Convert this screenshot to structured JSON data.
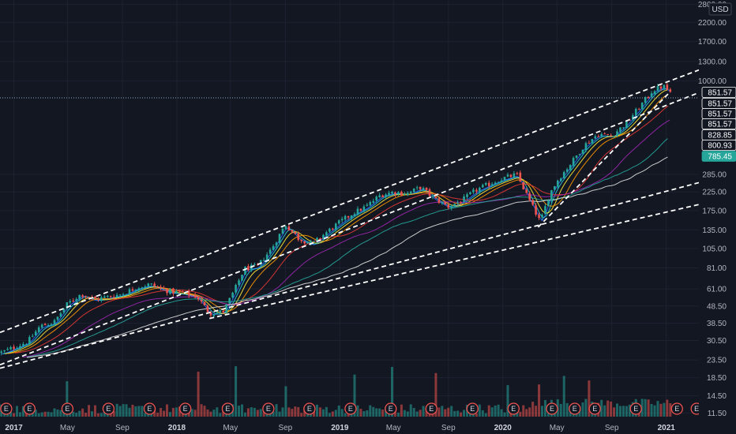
{
  "chart_data": {
    "type": "candlestick",
    "currency": "USD",
    "y_scale": "log",
    "ylim": [
      10.5,
      2850
    ],
    "x_range": [
      "2016-12-01",
      "2021-03-15"
    ],
    "y_ticks": [
      "2800.00",
      "2200.00",
      "1700.00",
      "1300.00",
      "1000.00",
      "285.00",
      "225.00",
      "175.00",
      "135.00",
      "105.00",
      "81.00",
      "61.00",
      "48.50",
      "38.50",
      "30.50",
      "23.50",
      "18.50",
      "14.50",
      "11.50"
    ],
    "x_ticks": [
      {
        "label": "2017",
        "date": "2017-01-01",
        "bold": true
      },
      {
        "label": "May",
        "date": "2017-05-01",
        "bold": false
      },
      {
        "label": "Sep",
        "date": "2017-09-01",
        "bold": false
      },
      {
        "label": "2018",
        "date": "2018-01-01",
        "bold": true
      },
      {
        "label": "May",
        "date": "2018-05-01",
        "bold": false
      },
      {
        "label": "Sep",
        "date": "2018-09-01",
        "bold": false
      },
      {
        "label": "2019",
        "date": "2019-01-01",
        "bold": true
      },
      {
        "label": "May",
        "date": "2019-05-01",
        "bold": false
      },
      {
        "label": "Sep",
        "date": "2019-09-01",
        "bold": false
      },
      {
        "label": "2020",
        "date": "2020-01-01",
        "bold": true
      },
      {
        "label": "May",
        "date": "2020-05-01",
        "bold": false
      },
      {
        "label": "Sep",
        "date": "2020-09-01",
        "bold": false
      },
      {
        "label": "2021",
        "date": "2021-01-01",
        "bold": true
      }
    ],
    "price_path": [
      [
        "2016-12-05",
        26
      ],
      [
        "2017-02-01",
        30
      ],
      [
        "2017-03-01",
        37
      ],
      [
        "2017-04-01",
        39
      ],
      [
        "2017-05-01",
        50
      ],
      [
        "2017-06-01",
        57
      ],
      [
        "2017-07-01",
        53
      ],
      [
        "2017-08-01",
        55
      ],
      [
        "2017-09-01",
        57
      ],
      [
        "2017-10-01",
        62
      ],
      [
        "2017-11-01",
        65
      ],
      [
        "2017-12-15",
        59
      ],
      [
        "2018-01-15",
        58
      ],
      [
        "2018-02-15",
        55
      ],
      [
        "2018-03-15",
        44
      ],
      [
        "2018-04-15",
        45
      ],
      [
        "2018-05-10",
        60
      ],
      [
        "2018-06-01",
        80
      ],
      [
        "2018-07-01",
        83
      ],
      [
        "2018-08-01",
        105
      ],
      [
        "2018-09-01",
        145
      ],
      [
        "2018-10-01",
        120
      ],
      [
        "2018-11-01",
        112
      ],
      [
        "2018-12-01",
        130
      ],
      [
        "2019-01-01",
        150
      ],
      [
        "2019-02-01",
        170
      ],
      [
        "2019-03-01",
        185
      ],
      [
        "2019-04-01",
        215
      ],
      [
        "2019-05-01",
        225
      ],
      [
        "2019-06-01",
        220
      ],
      [
        "2019-07-01",
        240
      ],
      [
        "2019-08-01",
        205
      ],
      [
        "2019-09-01",
        185
      ],
      [
        "2019-10-01",
        200
      ],
      [
        "2019-11-01",
        230
      ],
      [
        "2019-12-01",
        250
      ],
      [
        "2020-01-01",
        270
      ],
      [
        "2020-02-01",
        285
      ],
      [
        "2020-03-01",
        200
      ],
      [
        "2020-03-25",
        150
      ],
      [
        "2020-04-15",
        220
      ],
      [
        "2020-05-01",
        260
      ],
      [
        "2020-06-01",
        330
      ],
      [
        "2020-07-01",
        420
      ],
      [
        "2020-08-01",
        490
      ],
      [
        "2020-09-01",
        480
      ],
      [
        "2020-10-01",
        560
      ],
      [
        "2020-11-01",
        700
      ],
      [
        "2020-12-01",
        880
      ],
      [
        "2020-12-25",
        935
      ],
      [
        "2021-01-10",
        860
      ]
    ],
    "volume_spikes": [
      [
        "2017-05-01",
        0.35
      ],
      [
        "2018-02-15",
        0.45
      ],
      [
        "2018-05-10",
        0.55
      ],
      [
        "2018-09-01",
        0.3
      ],
      [
        "2019-02-01",
        0.4
      ],
      [
        "2019-05-01",
        0.5
      ],
      [
        "2019-08-01",
        0.42
      ],
      [
        "2020-01-15",
        0.3
      ],
      [
        "2020-03-20",
        0.35
      ],
      [
        "2020-05-15",
        0.45
      ],
      [
        "2020-07-10",
        0.38
      ]
    ],
    "moving_averages": [
      {
        "color": "#2962ff",
        "lag_days": 10
      },
      {
        "color": "#26c6da",
        "lag_days": 20
      },
      {
        "color": "#ffeb3b",
        "lag_days": 35
      },
      {
        "color": "#ff9800",
        "lag_days": 60
      },
      {
        "color": "#e53935",
        "lag_days": 110
      },
      {
        "color": "#9c27b0",
        "lag_days": 170
      },
      {
        "color": "#26a69a",
        "lag_days": 260
      },
      {
        "color": "#e0e0e0",
        "lag_days": 400
      }
    ],
    "trend_lines": [
      {
        "from": [
          "2016-12-01",
          34
        ],
        "to": [
          "2021-03-15",
          1160
        ]
      },
      {
        "from": [
          "2016-12-01",
          22
        ],
        "to": [
          "2021-03-15",
          855
        ]
      },
      {
        "from": [
          "2016-12-01",
          21
        ],
        "to": [
          "2021-03-15",
          255
        ]
      },
      {
        "from": [
          "2018-03-15",
          41
        ],
        "to": [
          "2021-03-15",
          190
        ]
      },
      {
        "from": [
          "2020-03-20",
          140
        ],
        "to": [
          "2021-01-05",
          840
        ]
      }
    ],
    "price_labels": [
      {
        "text": "851.57",
        "bg": "#131722",
        "fg": "#ffffff",
        "border": "#ffffff"
      },
      {
        "text": "851.57",
        "bg": "#131722",
        "fg": "#ffffff",
        "border": "#ffffff"
      },
      {
        "text": "851.57",
        "bg": "#131722",
        "fg": "#ffffff",
        "border": "#ffffff"
      },
      {
        "text": "851.57",
        "bg": "#131722",
        "fg": "#ffffff",
        "border": "#ffffff"
      },
      {
        "text": "828.85",
        "bg": "#131722",
        "fg": "#ffffff",
        "border": "#ffffff"
      },
      {
        "text": "800.93",
        "bg": "#131722",
        "fg": "#ffffff",
        "border": "#ffffff"
      },
      {
        "text": "785.45",
        "bg": "#26a69a",
        "fg": "#ffffff",
        "border": "#26a69a"
      }
    ],
    "earnings_marker": "E",
    "earnings_dates": [
      "2016-12-15",
      "2017-02-05",
      "2017-05-01",
      "2017-08-01",
      "2017-11-01",
      "2018-01-20",
      "2018-04-25",
      "2018-07-25",
      "2018-10-25",
      "2019-01-25",
      "2019-04-25",
      "2019-07-25",
      "2019-10-25",
      "2020-01-25",
      "2020-04-20",
      "2020-06-10",
      "2020-07-25",
      "2020-10-25",
      "2021-01-25",
      "2021-03-10"
    ],
    "colors": {
      "background": "#131722",
      "up": "#26a69a",
      "down": "#ef5350",
      "grid": "#1e2230",
      "trend": "#ffffff"
    }
  }
}
